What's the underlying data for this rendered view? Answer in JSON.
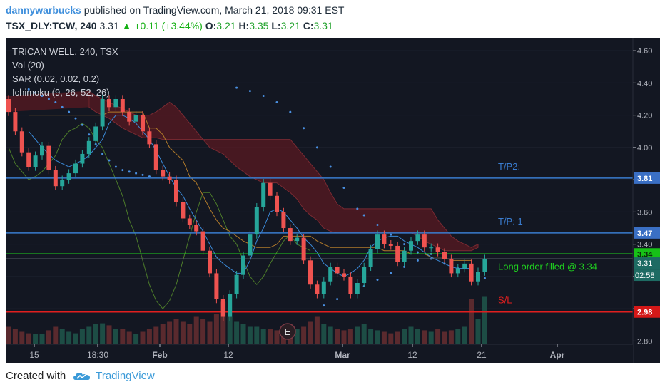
{
  "header": {
    "author": "dannywarbucks",
    "published_text": "published on TradingView.com, March 21, 2018 09:31 EST",
    "symbol_text": "TSX_DLY:TCW, 240",
    "price": "3.31",
    "change_text": "▲ +0.11 (+3.44%)",
    "o_label": "O:",
    "o_value": "3.21",
    "h_label": "H:",
    "h_value": "3.35",
    "l_label": "L:",
    "l_value": "3.21",
    "c_label": "C:",
    "c_value": "3.31"
  },
  "legend": {
    "title": "TRICAN WELL, 240, TSX",
    "vol": "Vol (20)",
    "sar": "SAR (0.02, 0.02, 0.2)",
    "ichimoku": "Ichimoku (9, 26, 52, 26)"
  },
  "footer": {
    "created_with": "Created with",
    "brand": "TradingView"
  },
  "colors": {
    "background": "#131722",
    "bull": "#26a69a",
    "bear": "#ef5350",
    "tp_line": "#3a7ccf",
    "entry_line": "#1fd11f",
    "stop_line": "#e01f1f",
    "sar_dots": "#4a90e2",
    "tenkan": "#3b8ad8",
    "kijun": "#b07a2a",
    "cloud_bear": "#5a1a22",
    "chikou": "#4d7d2a"
  },
  "chart_data": {
    "type": "candlestick",
    "yaxis": {
      "range": [
        2.78,
        4.68
      ],
      "ticks": [
        "4.60",
        "4.40",
        "4.20",
        "4.00",
        "3.80",
        "3.60",
        "3.40",
        "3.20",
        "3.00",
        "2.80"
      ]
    },
    "xaxis": {
      "ticks": [
        "15",
        "18:30",
        "Feb",
        "12",
        "Mar",
        "12",
        "21",
        "Apr"
      ]
    },
    "price_lines": [
      {
        "name": "T/P2:",
        "value": 3.81,
        "label": "3.81",
        "role": "tp"
      },
      {
        "name": "T/P: 1",
        "value": 3.47,
        "label": "3.47",
        "role": "tp"
      },
      {
        "name": "Long order filled @ 3.34",
        "value": 3.34,
        "label": "3.34",
        "role": "entry"
      },
      {
        "name": "S/L",
        "value": 2.98,
        "label": "2.98",
        "role": "stop"
      }
    ],
    "current_price": {
      "label": "3.31",
      "value": 3.31
    },
    "countdown": "02:58",
    "earnings_marker": "E",
    "candles": [
      [
        4.3,
        4.22
      ],
      [
        4.22,
        4.1
      ],
      [
        4.1,
        3.97
      ],
      [
        3.97,
        3.88
      ],
      [
        3.88,
        3.95
      ],
      [
        3.95,
        4.01
      ],
      [
        4.01,
        3.86
      ],
      [
        3.86,
        3.76
      ],
      [
        3.76,
        3.8
      ],
      [
        3.8,
        3.84
      ],
      [
        3.84,
        3.9
      ],
      [
        3.9,
        3.96
      ],
      [
        3.96,
        4.04
      ],
      [
        4.04,
        4.13
      ],
      [
        4.13,
        4.3
      ],
      [
        4.3,
        4.25
      ],
      [
        4.25,
        4.3
      ],
      [
        4.3,
        4.22
      ],
      [
        4.22,
        4.16
      ],
      [
        4.16,
        4.2
      ],
      [
        4.2,
        4.1
      ],
      [
        4.1,
        4.02
      ],
      [
        4.02,
        3.86
      ],
      [
        3.86,
        3.82
      ],
      [
        3.82,
        3.8
      ],
      [
        3.8,
        3.66
      ],
      [
        3.66,
        3.56
      ],
      [
        3.56,
        3.52
      ],
      [
        3.52,
        3.48
      ],
      [
        3.48,
        3.36
      ],
      [
        3.36,
        3.22
      ],
      [
        3.22,
        3.06
      ],
      [
        3.06,
        2.95
      ],
      [
        2.95,
        3.09
      ],
      [
        3.09,
        3.21
      ],
      [
        3.21,
        3.33
      ],
      [
        3.33,
        3.46
      ],
      [
        3.46,
        3.63
      ],
      [
        3.63,
        3.78
      ],
      [
        3.78,
        3.7
      ],
      [
        3.7,
        3.6
      ],
      [
        3.6,
        3.5
      ],
      [
        3.5,
        3.42
      ],
      [
        3.42,
        3.44
      ],
      [
        3.44,
        3.3
      ],
      [
        3.3,
        3.15
      ],
      [
        3.15,
        3.09
      ],
      [
        3.09,
        3.17
      ],
      [
        3.17,
        3.26
      ],
      [
        3.26,
        3.22
      ],
      [
        3.22,
        3.2
      ],
      [
        3.2,
        3.09
      ],
      [
        3.09,
        3.16
      ],
      [
        3.16,
        3.26
      ],
      [
        3.26,
        3.37
      ],
      [
        3.37,
        3.46
      ],
      [
        3.46,
        3.4
      ],
      [
        3.4,
        3.39
      ],
      [
        3.39,
        3.29
      ],
      [
        3.29,
        3.36
      ],
      [
        3.36,
        3.42
      ],
      [
        3.42,
        3.46
      ],
      [
        3.46,
        3.38
      ],
      [
        3.38,
        3.38
      ],
      [
        3.38,
        3.35
      ],
      [
        3.35,
        3.31
      ],
      [
        3.31,
        3.22
      ],
      [
        3.22,
        3.25
      ],
      [
        3.25,
        3.28
      ],
      [
        3.28,
        3.17
      ],
      [
        3.17,
        3.23
      ],
      [
        3.23,
        3.31
      ]
    ],
    "volume": [
      0.35,
      0.3,
      0.25,
      0.22,
      0.2,
      0.2,
      0.28,
      0.35,
      0.3,
      0.25,
      0.22,
      0.3,
      0.35,
      0.4,
      0.42,
      0.38,
      0.3,
      0.3,
      0.25,
      0.2,
      0.25,
      0.3,
      0.35,
      0.4,
      0.45,
      0.5,
      0.45,
      0.4,
      0.55,
      0.5,
      0.45,
      0.6,
      0.85,
      0.55,
      0.45,
      0.4,
      0.35,
      0.35,
      0.3,
      0.3,
      0.28,
      0.25,
      0.25,
      0.3,
      0.35,
      0.45,
      0.55,
      0.4,
      0.35,
      0.3,
      0.28,
      0.3,
      0.35,
      0.4,
      0.3,
      0.28,
      0.25,
      0.22,
      0.25,
      0.3,
      0.35,
      0.3,
      0.28,
      0.25,
      0.3,
      0.25,
      0.28,
      0.3,
      0.35,
      0.9,
      0.5,
      0.95
    ],
    "ichimoku": {
      "tenkan": [
        4.1,
        4.05,
        4.0,
        3.96,
        3.92,
        3.9,
        3.88,
        3.9,
        3.92,
        3.95,
        4.0,
        4.05,
        4.15,
        4.2,
        4.2,
        4.18,
        4.15,
        4.1,
        4.05,
        3.98,
        3.9,
        3.82,
        3.75,
        3.7,
        3.62,
        3.55,
        3.48,
        3.4,
        3.32,
        3.28,
        3.25,
        3.22,
        3.22,
        3.3,
        3.42,
        3.5,
        3.6,
        3.62,
        3.6,
        3.55,
        3.5,
        3.44,
        3.4,
        3.35,
        3.28,
        3.25,
        3.22,
        3.2,
        3.22,
        3.25,
        3.3,
        3.38,
        3.42,
        3.44,
        3.45,
        3.45,
        3.42,
        3.4,
        3.38,
        3.35,
        3.32,
        3.3,
        3.28,
        3.26,
        3.25,
        3.25,
        3.25
      ],
      "kijun": [
        4.2,
        4.2,
        4.2,
        4.2,
        4.2,
        4.2,
        4.2,
        4.2,
        4.2,
        4.2,
        4.2,
        4.2,
        4.22,
        4.22,
        4.22,
        4.22,
        4.22,
        4.22,
        4.12,
        4.12,
        4.08,
        4.0,
        3.96,
        3.92,
        3.82,
        3.78,
        3.7,
        3.62,
        3.55,
        3.5,
        3.48,
        3.45,
        3.42,
        3.4,
        3.38,
        3.38,
        3.38,
        3.4,
        3.45,
        3.45,
        3.45,
        3.45,
        3.45,
        3.42,
        3.4,
        3.38,
        3.38,
        3.38,
        3.38,
        3.38,
        3.38,
        3.38,
        3.38,
        3.36,
        3.36,
        3.36,
        3.36,
        3.34,
        3.34,
        3.34,
        3.32,
        3.32,
        3.32,
        3.3,
        3.3,
        3.3,
        3.3
      ],
      "cloud_top": [
        4.35,
        4.32,
        4.3,
        4.28,
        4.26,
        4.24,
        4.22,
        4.2,
        4.2,
        4.2,
        4.22,
        4.25,
        4.28,
        4.25,
        4.2,
        4.15,
        4.1,
        4.05,
        4.05,
        4.05,
        4.05,
        4.05,
        4.05,
        4.05,
        4.05,
        4.05,
        4.05,
        4.05,
        4.05,
        4.05,
        4.05,
        4.0,
        3.95,
        3.9,
        3.85,
        3.8,
        3.72,
        3.65,
        3.62,
        3.62,
        3.62,
        3.62,
        3.62,
        3.62,
        3.62,
        3.62,
        3.62,
        3.62,
        3.62,
        3.62,
        3.62,
        3.62,
        3.55,
        3.5,
        3.45,
        3.42,
        3.4,
        3.38,
        3.4
      ],
      "cloud_bottom": [
        4.25,
        4.22,
        4.2,
        4.18,
        4.15,
        4.12,
        4.1,
        4.08,
        4.06,
        4.06,
        4.06,
        4.05,
        4.05,
        4.05,
        4.05,
        4.05,
        4.05,
        4.05,
        4.0,
        3.98,
        3.96,
        3.92,
        3.88,
        3.85,
        3.82,
        3.8,
        3.78,
        3.78,
        3.78,
        3.75,
        3.72,
        3.68,
        3.62,
        3.58,
        3.55,
        3.5,
        3.48,
        3.47,
        3.47,
        3.47,
        3.47,
        3.47,
        3.47,
        3.47,
        3.47,
        3.47,
        3.47,
        3.47,
        3.47,
        3.45,
        3.42,
        3.4,
        3.38,
        3.36,
        3.36,
        3.36,
        3.36,
        3.36,
        3.38
      ],
      "chikou": [
        4.0,
        3.9,
        3.85,
        3.8,
        3.82,
        3.85,
        3.9,
        3.95,
        4.05,
        4.1,
        4.12,
        4.15,
        4.12,
        4.05,
        4.0,
        3.9,
        3.8,
        3.7,
        3.55,
        3.45,
        3.3,
        3.15,
        3.05,
        3.0,
        3.05,
        3.15,
        3.3,
        3.45,
        3.6,
        3.72,
        3.72,
        3.65,
        3.55,
        3.45,
        3.4,
        3.3,
        3.2,
        3.15,
        3.2,
        3.28,
        3.35,
        3.42,
        3.46,
        3.4,
        3.38,
        3.36
      ]
    },
    "sar": [
      [
        3,
        4.36
      ],
      [
        4,
        4.34
      ],
      [
        5,
        4.32
      ],
      [
        6,
        4.3
      ],
      [
        7,
        4.28
      ],
      [
        8,
        4.25
      ],
      [
        9,
        4.22
      ],
      [
        10,
        4.18
      ],
      [
        11,
        4.14
      ],
      [
        12,
        4.08
      ],
      [
        13,
        4.02
      ],
      [
        14,
        3.96
      ],
      [
        15,
        3.92
      ],
      [
        16,
        3.88
      ],
      [
        17,
        3.86
      ],
      [
        18,
        3.85
      ],
      [
        19,
        3.84
      ],
      [
        20,
        3.83
      ],
      [
        21,
        3.82
      ],
      [
        34,
        4.37
      ],
      [
        36,
        4.35
      ],
      [
        38,
        4.32
      ],
      [
        40,
        4.28
      ],
      [
        42,
        4.22
      ],
      [
        44,
        4.12
      ],
      [
        46,
        4.0
      ],
      [
        48,
        3.88
      ],
      [
        50,
        3.75
      ],
      [
        52,
        3.62
      ],
      [
        53,
        3.58
      ],
      [
        55,
        3.52
      ],
      [
        57,
        3.46
      ],
      [
        59,
        3.4
      ],
      [
        61,
        3.35
      ],
      [
        63,
        3.31
      ],
      [
        65,
        3.28
      ],
      [
        67,
        3.25
      ],
      [
        69,
        3.22
      ],
      [
        71,
        3.19
      ],
      [
        47,
        3.02
      ],
      [
        49,
        3.06
      ],
      [
        51,
        3.1
      ],
      [
        53,
        3.14
      ],
      [
        55,
        3.18
      ],
      [
        57,
        3.22
      ],
      [
        59,
        3.26
      ],
      [
        61,
        3.3
      ],
      [
        63,
        3.34
      ]
    ]
  }
}
